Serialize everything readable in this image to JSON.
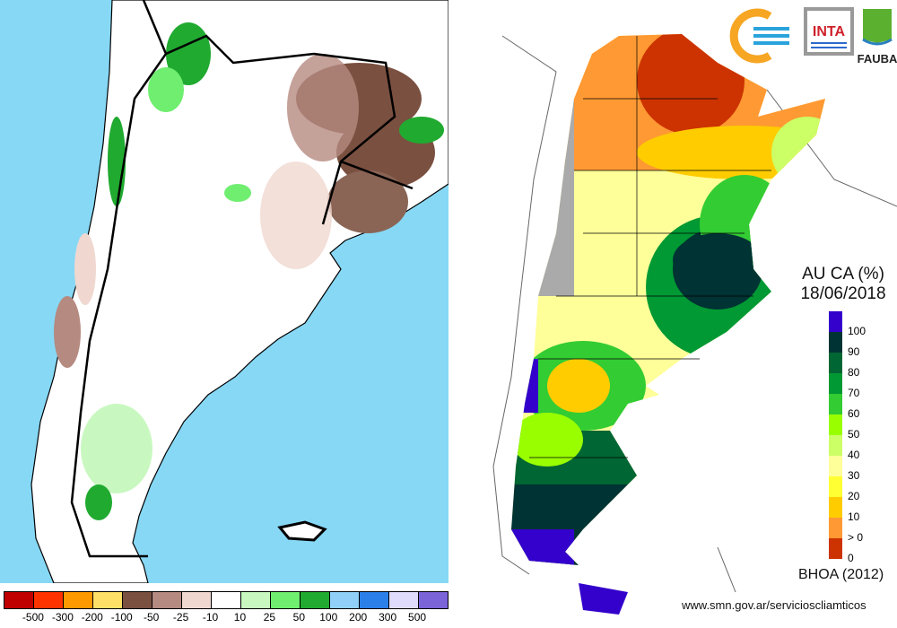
{
  "left_map": {
    "colorbar": {
      "colors": [
        "#c00000",
        "#ff3300",
        "#ff9900",
        "#ffe066",
        "#7a5040",
        "#b58a80",
        "#f0d8d0",
        "#ffffff",
        "#c8f8c0",
        "#70ee70",
        "#20aa30",
        "#90d0f8",
        "#2a80e8",
        "#dedcfa",
        "#7a64d8"
      ],
      "labels": [
        "-500",
        "-300",
        "-200",
        "-100",
        "-50",
        "-25",
        "-10",
        "10",
        "25",
        "50",
        "100",
        "200",
        "300",
        "500"
      ]
    },
    "ocean_color": "#87d8f5"
  },
  "right_map": {
    "title_line1": "AU CA (%)",
    "title_line2": "18/06/2018",
    "legend": {
      "colors": [
        "#3300cc",
        "#003333",
        "#006633",
        "#009933",
        "#33cc33",
        "#99ff00",
        "#ccff66",
        "#ffff99",
        "#ffff33",
        "#ffcc00",
        "#ff9933",
        "#cc3300"
      ],
      "labels": [
        "100",
        "90",
        "80",
        "70",
        "60",
        "50",
        "40",
        "30",
        "20",
        "10",
        "> 0",
        "0"
      ]
    },
    "source": "BHOA (2012)",
    "url": "www.smn.gov.ar/servicioscliamticos",
    "logos": {
      "inta": "INTA",
      "fauba": "FAUBA"
    }
  }
}
